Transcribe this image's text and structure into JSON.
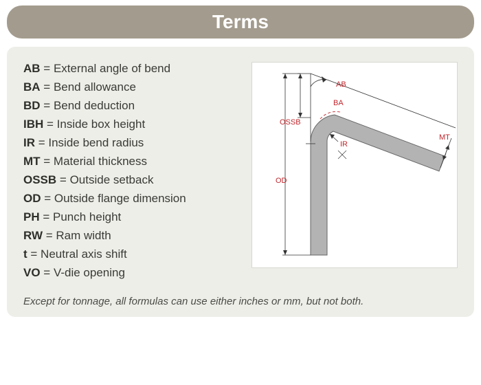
{
  "header": {
    "title": "Terms",
    "bg_color": "#a39b8d",
    "text_color": "#ffffff",
    "fontsize": 28
  },
  "panel": {
    "bg_color": "#eeeee9"
  },
  "terms": [
    {
      "abbr": "AB",
      "def": "External angle of bend"
    },
    {
      "abbr": "BA",
      "def": "Bend allowance"
    },
    {
      "abbr": "BD",
      "def": "Bend deduction"
    },
    {
      "abbr": "IBH",
      "def": "Inside box height"
    },
    {
      "abbr": "IR",
      "def": "Inside bend radius"
    },
    {
      "abbr": "MT",
      "def": "Material thickness"
    },
    {
      "abbr": "OSSB",
      "def": "Outside setback"
    },
    {
      "abbr": "OD",
      "def": "Outside flange dimension"
    },
    {
      "abbr": "PH",
      "def": "Punch height"
    },
    {
      "abbr": "RW",
      "def": "Ram width"
    },
    {
      "abbr": "t",
      "def": "Neutral axis shift"
    },
    {
      "abbr": "VO",
      "def": "V-die opening"
    }
  ],
  "footnote": "Except for tonnage, all formulas can use either inches or mm, but not both.",
  "diagram": {
    "labels": {
      "AB": "AB",
      "BA": "BA",
      "OSSB": "OSSB",
      "IR": "IR",
      "MT": "MT",
      "OD": "OD"
    },
    "colors": {
      "shape_fill": "#b3b3b3",
      "shape_stroke": "#666666",
      "dim_stroke": "#333333",
      "label_color": "#c1272d",
      "bg": "#ffffff"
    }
  }
}
